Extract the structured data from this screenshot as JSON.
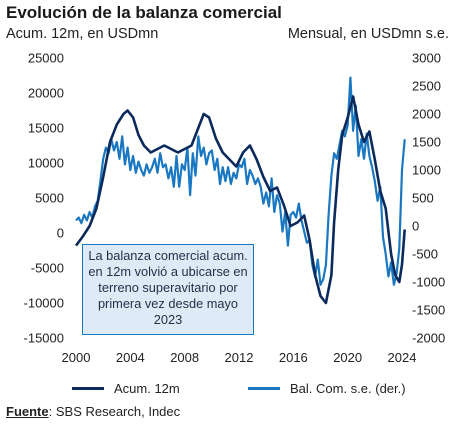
{
  "header": {
    "title": "Evolución de la balanza comercial",
    "left_unit": "Acum. 12m, en USDmn",
    "right_unit": "Mensual, en USDmn s.e."
  },
  "annotation": "La balanza comercial acum. en 12m volvió a ubicarse en terreno superavitario por primera vez desde mayo 2023",
  "source": {
    "label": "Fuente",
    "text": ": SBS Research, Indec"
  },
  "colors": {
    "acum": "#0b2a5b",
    "monthly": "#1a78c2",
    "annot_bg": "#deebf7"
  },
  "chart_data": {
    "type": "line",
    "x_ticks": [
      "2000",
      "2004",
      "2008",
      "2012",
      "2016",
      "2020",
      "2024"
    ],
    "xlim": [
      2000,
      2024
    ],
    "y_left": {
      "ticks": [
        "25000",
        "20000",
        "15000",
        "10000",
        "5000",
        "0",
        "-5000",
        "-10000",
        "-15000"
      ],
      "ylim": [
        -15000,
        25000
      ]
    },
    "y_right": {
      "ticks": [
        "3000",
        "2500",
        "2000",
        "1500",
        "1000",
        "500",
        "0",
        "-500",
        "-1000",
        "-1500",
        "-2000"
      ],
      "ylim": [
        -2000,
        3000
      ]
    },
    "series": [
      {
        "name": "Acum. 12m",
        "axis": "left",
        "points": [
          [
            2000.0,
            -1800
          ],
          [
            2000.5,
            -500
          ],
          [
            2001.0,
            1000
          ],
          [
            2001.5,
            3500
          ],
          [
            2002.0,
            8000
          ],
          [
            2002.5,
            13000
          ],
          [
            2003.0,
            15500
          ],
          [
            2003.5,
            17000
          ],
          [
            2003.8,
            17500
          ],
          [
            2004.2,
            16500
          ],
          [
            2004.6,
            14000
          ],
          [
            2005.0,
            12500
          ],
          [
            2005.5,
            11500
          ],
          [
            2006.0,
            12000
          ],
          [
            2006.5,
            12500
          ],
          [
            2007.0,
            12000
          ],
          [
            2007.5,
            11500
          ],
          [
            2008.0,
            12000
          ],
          [
            2008.5,
            12500
          ],
          [
            2009.0,
            15000
          ],
          [
            2009.4,
            17000
          ],
          [
            2009.8,
            16500
          ],
          [
            2010.3,
            13500
          ],
          [
            2010.8,
            11500
          ],
          [
            2011.3,
            10500
          ],
          [
            2011.8,
            9500
          ],
          [
            2012.3,
            11500
          ],
          [
            2012.8,
            12500
          ],
          [
            2013.3,
            10500
          ],
          [
            2013.8,
            8000
          ],
          [
            2014.3,
            6000
          ],
          [
            2014.8,
            6500
          ],
          [
            2015.3,
            4000
          ],
          [
            2015.8,
            1000
          ],
          [
            2016.3,
            1500
          ],
          [
            2016.8,
            2500
          ],
          [
            2017.2,
            -1000
          ],
          [
            2017.6,
            -6000
          ],
          [
            2018.0,
            -9000
          ],
          [
            2018.4,
            -10000
          ],
          [
            2018.8,
            -6000
          ],
          [
            2019.0,
            1500
          ],
          [
            2019.3,
            9000
          ],
          [
            2019.6,
            14000
          ],
          [
            2020.0,
            16500
          ],
          [
            2020.4,
            19500
          ],
          [
            2020.8,
            15500
          ],
          [
            2021.2,
            13000
          ],
          [
            2021.6,
            14500
          ],
          [
            2022.0,
            10500
          ],
          [
            2022.4,
            6000
          ],
          [
            2022.8,
            3500
          ],
          [
            2023.2,
            -3000
          ],
          [
            2023.5,
            -6000
          ],
          [
            2023.8,
            -7000
          ],
          [
            2024.0,
            -4500
          ],
          [
            2024.2,
            500
          ]
        ]
      },
      {
        "name": "Bal. Com. s.e. (der.)",
        "axis": "right",
        "points": [
          [
            2000.0,
            100
          ],
          [
            2000.2,
            150
          ],
          [
            2000.4,
            50
          ],
          [
            2000.6,
            200
          ],
          [
            2000.8,
            100
          ],
          [
            2001.0,
            250
          ],
          [
            2001.2,
            150
          ],
          [
            2001.4,
            350
          ],
          [
            2001.6,
            450
          ],
          [
            2001.8,
            800
          ],
          [
            2002.0,
            1200
          ],
          [
            2002.2,
            1400
          ],
          [
            2002.4,
            1300
          ],
          [
            2002.6,
            1550
          ],
          [
            2002.8,
            1350
          ],
          [
            2003.0,
            1500
          ],
          [
            2003.2,
            1200
          ],
          [
            2003.4,
            1600
          ],
          [
            2003.6,
            1100
          ],
          [
            2003.8,
            1400
          ],
          [
            2004.0,
            1000
          ],
          [
            2004.2,
            1250
          ],
          [
            2004.4,
            950
          ],
          [
            2004.6,
            1150
          ],
          [
            2004.8,
            1000
          ],
          [
            2005.0,
            900
          ],
          [
            2005.2,
            1100
          ],
          [
            2005.4,
            950
          ],
          [
            2005.6,
            1050
          ],
          [
            2005.8,
            1200
          ],
          [
            2006.0,
            950
          ],
          [
            2006.2,
            1300
          ],
          [
            2006.4,
            1050
          ],
          [
            2006.6,
            1100
          ],
          [
            2006.8,
            850
          ],
          [
            2007.0,
            1050
          ],
          [
            2007.2,
            700
          ],
          [
            2007.4,
            1250
          ],
          [
            2007.6,
            700
          ],
          [
            2007.8,
            1100
          ],
          [
            2008.0,
            1000
          ],
          [
            2008.2,
            1400
          ],
          [
            2008.4,
            550
          ],
          [
            2008.6,
            1300
          ],
          [
            2008.8,
            900
          ],
          [
            2009.0,
            1600
          ],
          [
            2009.2,
            1250
          ],
          [
            2009.4,
            1400
          ],
          [
            2009.6,
            1100
          ],
          [
            2009.8,
            1300
          ],
          [
            2010.0,
            1350
          ],
          [
            2010.2,
            1000
          ],
          [
            2010.4,
            1200
          ],
          [
            2010.6,
            750
          ],
          [
            2010.8,
            1050
          ],
          [
            2011.0,
            800
          ],
          [
            2011.2,
            1050
          ],
          [
            2011.4,
            750
          ],
          [
            2011.6,
            950
          ],
          [
            2011.8,
            850
          ],
          [
            2012.0,
            1100
          ],
          [
            2012.2,
            1050
          ],
          [
            2012.4,
            1200
          ],
          [
            2012.6,
            750
          ],
          [
            2012.8,
            1000
          ],
          [
            2013.0,
            900
          ],
          [
            2013.2,
            750
          ],
          [
            2013.4,
            850
          ],
          [
            2013.6,
            700
          ],
          [
            2013.8,
            400
          ],
          [
            2014.0,
            600
          ],
          [
            2014.2,
            350
          ],
          [
            2014.4,
            850
          ],
          [
            2014.6,
            250
          ],
          [
            2014.8,
            550
          ],
          [
            2015.0,
            400
          ],
          [
            2015.2,
            -100
          ],
          [
            2015.4,
            250
          ],
          [
            2015.6,
            -350
          ],
          [
            2015.8,
            200
          ],
          [
            2016.0,
            250
          ],
          [
            2016.2,
            150
          ],
          [
            2016.4,
            400
          ],
          [
            2016.6,
            100
          ],
          [
            2016.8,
            -100
          ],
          [
            2017.0,
            -300
          ],
          [
            2017.2,
            -250
          ],
          [
            2017.4,
            -700
          ],
          [
            2017.6,
            -900
          ],
          [
            2017.8,
            -600
          ],
          [
            2018.0,
            -1050
          ],
          [
            2018.2,
            -950
          ],
          [
            2018.4,
            -700
          ],
          [
            2018.6,
            200
          ],
          [
            2018.8,
            900
          ],
          [
            2019.0,
            1300
          ],
          [
            2019.2,
            1200
          ],
          [
            2019.4,
            1450
          ],
          [
            2019.6,
            1700
          ],
          [
            2019.8,
            1600
          ],
          [
            2020.0,
            1800
          ],
          [
            2020.2,
            2650
          ],
          [
            2020.4,
            1700
          ],
          [
            2020.6,
            2150
          ],
          [
            2020.8,
            1250
          ],
          [
            2021.0,
            1550
          ],
          [
            2021.2,
            1200
          ],
          [
            2021.4,
            1650
          ],
          [
            2021.6,
            1250
          ],
          [
            2021.8,
            1050
          ],
          [
            2022.0,
            800
          ],
          [
            2022.2,
            450
          ],
          [
            2022.4,
            700
          ],
          [
            2022.6,
            -200
          ],
          [
            2022.8,
            -500
          ],
          [
            2023.0,
            -900
          ],
          [
            2023.2,
            -650
          ],
          [
            2023.4,
            -1050
          ],
          [
            2023.6,
            -850
          ],
          [
            2023.8,
            -400
          ],
          [
            2024.0,
            1000
          ],
          [
            2024.2,
            1550
          ]
        ]
      }
    ],
    "legend_position": "bottom",
    "grid": false
  }
}
